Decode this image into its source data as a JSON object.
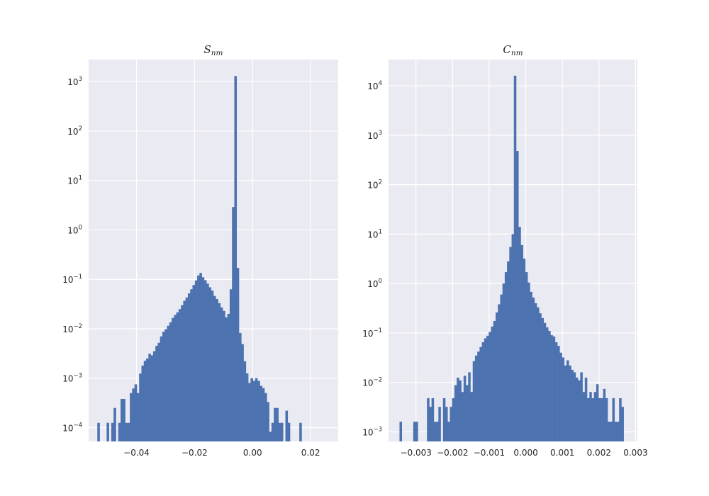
{
  "colors": {
    "bar": "#4c72b0",
    "panel_background": "#eaeaf2",
    "grid": "#ffffff",
    "text": "#262626",
    "figure_background": "#ffffff"
  },
  "chart_data": [
    {
      "type": "bar",
      "title": "S",
      "title_subscript": "nm",
      "yscale": "log",
      "grid": true,
      "xlim": [
        -0.0565,
        0.0295
      ],
      "ylim": [
        5.25e-05,
        2800
      ],
      "xticks": [
        -0.04,
        -0.02,
        0.0,
        0.02
      ],
      "xtick_labels": [
        "−0.04",
        "−0.02",
        "0.00",
        "0.02"
      ],
      "yticks": [
        0.0001,
        0.001,
        0.01,
        0.1,
        1,
        10,
        100,
        1000
      ],
      "ytick_labels": [
        {
          "base": "10",
          "exp": "−4"
        },
        {
          "base": "10",
          "exp": "−3"
        },
        {
          "base": "10",
          "exp": "−2"
        },
        {
          "base": "10",
          "exp": "−1"
        },
        {
          "base": "10",
          "exp": "0"
        },
        {
          "base": "10",
          "exp": "1"
        },
        {
          "base": "10",
          "exp": "2"
        },
        {
          "base": "10",
          "exp": "3"
        }
      ],
      "bin_start": -0.0535,
      "bin_width": 0.0008,
      "counts": [
        0.000125,
        0,
        0,
        0,
        0.000125,
        0,
        0.000125,
        0.00025,
        0,
        0.000125,
        0.00038,
        0.00038,
        0.000125,
        0.000125,
        0.0005,
        0.00062,
        0.00075,
        0.0005,
        0.00124,
        0.0018,
        0.00225,
        0.0025,
        0.00312,
        0.0029,
        0.0035,
        0.0045,
        0.0052,
        0.007,
        0.0087,
        0.0098,
        0.0115,
        0.0135,
        0.0165,
        0.019,
        0.0215,
        0.025,
        0.03,
        0.037,
        0.043,
        0.052,
        0.063,
        0.077,
        0.095,
        0.12,
        0.135,
        0.11,
        0.096,
        0.082,
        0.069,
        0.059,
        0.046,
        0.04,
        0.033,
        0.027,
        0.023,
        0.017,
        0.02,
        0.063,
        2.9,
        1300,
        0.17,
        0.0082,
        0.0049,
        0.0022,
        0.00125,
        0.0008,
        0.001,
        0.00088,
        0.001,
        0.00088,
        0.0007,
        0.00063,
        0.0005,
        0.00033,
        8.25e-05,
        0.000125,
        0.00025,
        0.00025,
        0.000125,
        0.000125,
        0,
        0.00022,
        0.000125,
        0,
        0,
        0,
        0,
        0.000125
      ]
    },
    {
      "type": "bar",
      "title": "C",
      "title_subscript": "nm",
      "yscale": "log",
      "grid": true,
      "xlim": [
        -0.00375,
        0.00305
      ],
      "ylim": [
        0.00064,
        34000
      ],
      "xticks": [
        -0.003,
        -0.002,
        -0.001,
        0.0,
        0.001,
        0.002,
        0.003
      ],
      "xtick_labels": [
        "−0.003",
        "−0.002",
        "−0.001",
        "0.000",
        "0.001",
        "0.002",
        "0.003"
      ],
      "yticks": [
        0.001,
        0.01,
        0.1,
        1,
        10,
        100,
        1000,
        10000
      ],
      "ytick_labels": [
        {
          "base": "10",
          "exp": "−3"
        },
        {
          "base": "10",
          "exp": "−2"
        },
        {
          "base": "10",
          "exp": "−1"
        },
        {
          "base": "10",
          "exp": "0"
        },
        {
          "base": "10",
          "exp": "1"
        },
        {
          "base": "10",
          "exp": "2"
        },
        {
          "base": "10",
          "exp": "3"
        },
        {
          "base": "10",
          "exp": "4"
        }
      ],
      "bin_start": -0.00345,
      "bin_width": 6.25e-05,
      "counts": [
        0.0016,
        0,
        0,
        0,
        0,
        0,
        0.0016,
        0.0016,
        0,
        0,
        0,
        0,
        0.0048,
        0.0032,
        0.0048,
        0.0016,
        0.0016,
        0.0032,
        0,
        0.0048,
        0.0032,
        0.0016,
        0.0032,
        0.0048,
        0.0088,
        0.0125,
        0.011,
        0.0064,
        0.0136,
        0.0088,
        0.016,
        0.0064,
        0.027,
        0.035,
        0.042,
        0.052,
        0.065,
        0.078,
        0.088,
        0.105,
        0.135,
        0.175,
        0.26,
        0.38,
        0.6,
        1.0,
        1.7,
        2.8,
        5.5,
        10,
        16000,
        480,
        14,
        6,
        3.2,
        1.7,
        1.05,
        0.68,
        0.52,
        0.4,
        0.33,
        0.25,
        0.2,
        0.16,
        0.13,
        0.11,
        0.09,
        0.085,
        0.065,
        0.055,
        0.04,
        0.032,
        0.022,
        0.028,
        0.022,
        0.018,
        0.016,
        0.0125,
        0.011,
        0.016,
        0.0064,
        0.0125,
        0.0048,
        0.0064,
        0.0048,
        0.0064,
        0.0092,
        0.0048,
        0.0048,
        0.0074,
        0.0048,
        0.0016,
        0.0016,
        0.0048,
        0.0016,
        0.0016,
        0.0048,
        0.0032
      ]
    }
  ]
}
